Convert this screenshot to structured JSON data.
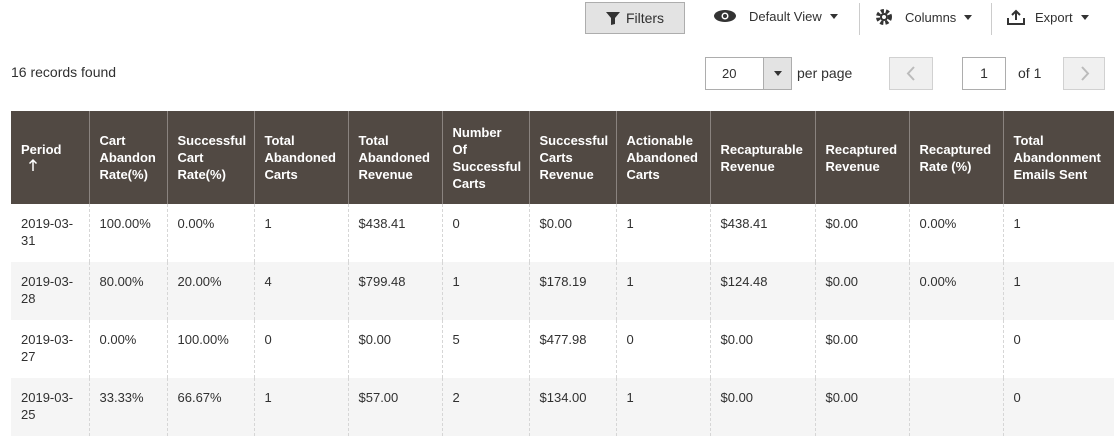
{
  "toolbar": {
    "filters": "Filters",
    "view": "Default View",
    "columns": "Columns",
    "export": "Export"
  },
  "pager": {
    "records": "16 records found",
    "per_page": "20",
    "per_page_label": "per page",
    "page": "1",
    "pages": "of 1"
  },
  "table": {
    "columns": [
      "Period",
      "Cart Abandon Rate(%)",
      "Successful Cart Rate(%)",
      "Total Abandoned Carts",
      "Total Abandoned Revenue",
      "Number Of Successful Carts",
      "Successful Carts Revenue",
      "Actionable Abandoned Carts",
      "Recapturable Revenue",
      "Recaptured Revenue",
      "Recaptured Rate (%)",
      "Total Abandonment Emails Sent"
    ],
    "rows": [
      [
        "2019-03-31",
        "100.00%",
        "0.00%",
        "1",
        "$438.41",
        "0",
        "$0.00",
        "1",
        "$438.41",
        "$0.00",
        "0.00%",
        "1"
      ],
      [
        "2019-03-28",
        "80.00%",
        "20.00%",
        "4",
        "$799.48",
        "1",
        "$178.19",
        "1",
        "$124.48",
        "$0.00",
        "0.00%",
        "1"
      ],
      [
        "2019-03-27",
        "0.00%",
        "100.00%",
        "0",
        "$0.00",
        "5",
        "$477.98",
        "0",
        "$0.00",
        "$0.00",
        null,
        "0"
      ],
      [
        "2019-03-25",
        "33.33%",
        "66.67%",
        "1",
        "$57.00",
        "2",
        "$134.00",
        "1",
        "$0.00",
        "$0.00",
        null,
        "0"
      ]
    ]
  }
}
